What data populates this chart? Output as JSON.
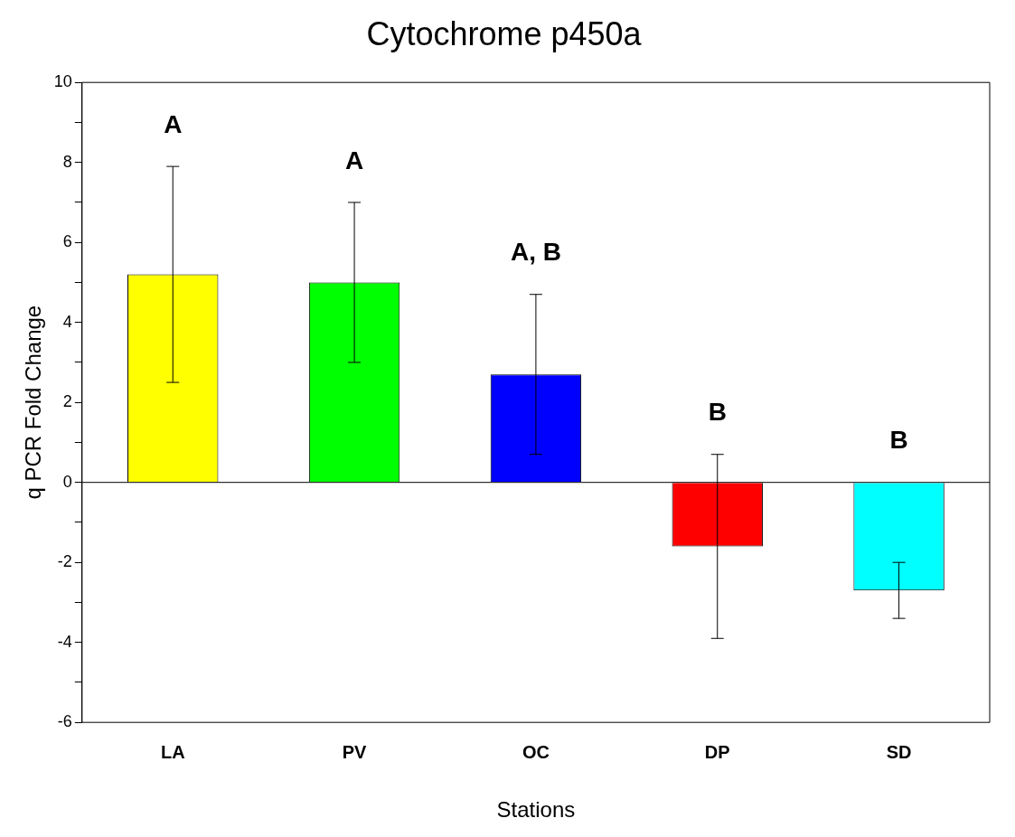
{
  "chart_data": {
    "type": "bar",
    "title": "Cytochrome p450a",
    "xlabel": "Stations",
    "ylabel": "q PCR Fold Change",
    "categories": [
      "LA",
      "PV",
      "OC",
      "DP",
      "SD"
    ],
    "values": [
      5.2,
      5.0,
      2.7,
      -1.6,
      -2.7
    ],
    "errors": [
      2.7,
      2.0,
      2.0,
      2.3,
      0.7
    ],
    "colors": [
      "#ffff00",
      "#00ff00",
      "#0000ff",
      "#ff0000",
      "#00ffff"
    ],
    "ylim": [
      -6,
      10
    ],
    "yticks": [
      -6,
      {
        "value": -5,
        "label": null
      },
      -4,
      {
        "value": -3,
        "label": null
      },
      -2,
      {
        "value": -1,
        "label": null
      },
      0,
      {
        "value": 1,
        "label": null
      },
      2,
      {
        "value": 3,
        "label": null
      },
      4,
      {
        "value": 5,
        "label": null
      },
      6,
      {
        "value": 7,
        "label": null
      },
      8,
      {
        "value": 9,
        "label": null
      },
      10
    ],
    "ref_lines": [
      {
        "axis": "y",
        "value": 0,
        "color": "#000000"
      }
    ],
    "annotations": [
      "A",
      "A",
      "A, B",
      "B",
      "B"
    ],
    "grid": false,
    "legend": false
  }
}
